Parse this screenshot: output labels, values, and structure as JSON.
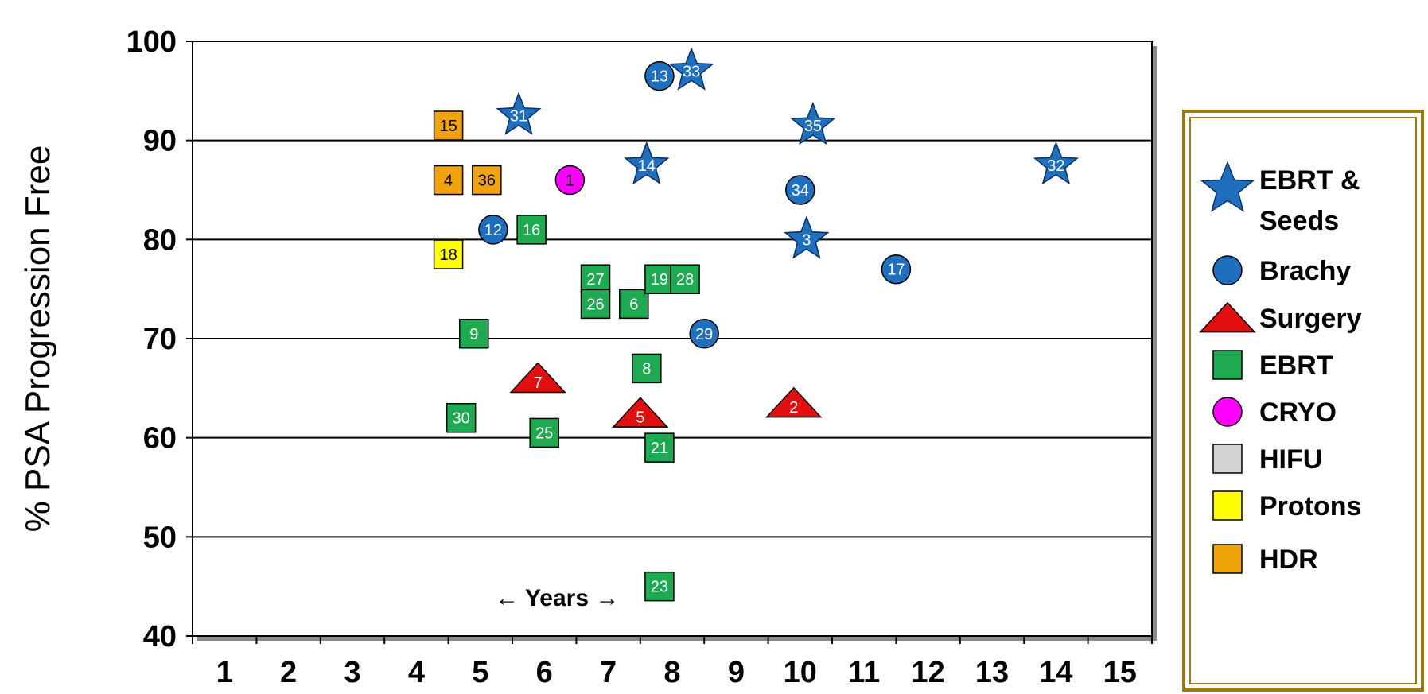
{
  "chart_data": {
    "type": "scatter",
    "ylabel": "% PSA Progression Free",
    "xlabel": "",
    "xlim": [
      0.5,
      15.5
    ],
    "ylim": [
      40,
      100
    ],
    "x_ticks": [
      1,
      2,
      3,
      4,
      5,
      6,
      7,
      8,
      9,
      10,
      11,
      12,
      13,
      14,
      15
    ],
    "y_ticks": [
      40,
      50,
      60,
      70,
      80,
      90,
      100
    ],
    "grid": "horizontal",
    "annotation": "← Years →",
    "annotation_position": [
      6.2,
      44
    ],
    "legend_placement": "right",
    "series": [
      {
        "name": "EBRT & Seeds",
        "marker": "star",
        "color": "#1F6FBF",
        "points": [
          {
            "id": "31",
            "x": 5.6,
            "y": 92.5
          },
          {
            "id": "33",
            "x": 8.3,
            "y": 97
          },
          {
            "id": "14",
            "x": 7.6,
            "y": 87.5
          },
          {
            "id": "35",
            "x": 10.2,
            "y": 91.5
          },
          {
            "id": "3",
            "x": 10.1,
            "y": 80
          },
          {
            "id": "32",
            "x": 14,
            "y": 87.5
          }
        ]
      },
      {
        "name": "Brachy",
        "marker": "circle",
        "color": "#1F6FBF",
        "points": [
          {
            "id": "13",
            "x": 7.8,
            "y": 96.5
          },
          {
            "id": "12",
            "x": 5.2,
            "y": 81
          },
          {
            "id": "34",
            "x": 10.0,
            "y": 85
          },
          {
            "id": "17",
            "x": 11.5,
            "y": 77
          },
          {
            "id": "29",
            "x": 8.5,
            "y": 70.5
          }
        ]
      },
      {
        "name": "Surgery",
        "marker": "triangle",
        "color": "#E01010",
        "points": [
          {
            "id": "7",
            "x": 5.9,
            "y": 66
          },
          {
            "id": "5",
            "x": 7.5,
            "y": 62.5
          },
          {
            "id": "2",
            "x": 9.9,
            "y": 63.5
          }
        ]
      },
      {
        "name": "EBRT",
        "marker": "square",
        "color": "#1DAA50",
        "points": [
          {
            "id": "16",
            "x": 5.8,
            "y": 81
          },
          {
            "id": "27",
            "x": 6.8,
            "y": 76
          },
          {
            "id": "26",
            "x": 6.8,
            "y": 73.5
          },
          {
            "id": "6",
            "x": 7.4,
            "y": 73.5
          },
          {
            "id": "19",
            "x": 7.8,
            "y": 76
          },
          {
            "id": "28",
            "x": 8.2,
            "y": 76
          },
          {
            "id": "9",
            "x": 4.9,
            "y": 70.5
          },
          {
            "id": "8",
            "x": 7.6,
            "y": 67
          },
          {
            "id": "30",
            "x": 4.7,
            "y": 62
          },
          {
            "id": "25",
            "x": 6.0,
            "y": 60.5
          },
          {
            "id": "21",
            "x": 7.8,
            "y": 59
          },
          {
            "id": "23",
            "x": 7.8,
            "y": 45
          }
        ]
      },
      {
        "name": "CRYO",
        "marker": "circle",
        "color": "#FF00FF",
        "points": [
          {
            "id": "1",
            "x": 6.4,
            "y": 86
          }
        ]
      },
      {
        "name": "HIFU",
        "marker": "square",
        "color": "#D4D4D4",
        "points": []
      },
      {
        "name": "Protons",
        "marker": "square",
        "color": "#FFFF00",
        "points": [
          {
            "id": "18",
            "x": 4.5,
            "y": 78.5
          }
        ]
      },
      {
        "name": "HDR",
        "marker": "square",
        "color": "#F0A30A",
        "points": [
          {
            "id": "15",
            "x": 4.5,
            "y": 91.5
          },
          {
            "id": "4",
            "x": 4.5,
            "y": 86
          },
          {
            "id": "36",
            "x": 5.1,
            "y": 86
          }
        ]
      }
    ],
    "legend": [
      {
        "label": "EBRT &\nSeeds",
        "marker": "star",
        "color": "#1F6FBF"
      },
      {
        "label": "Brachy",
        "marker": "circle",
        "color": "#1F6FBF"
      },
      {
        "label": "Surgery",
        "marker": "triangle",
        "color": "#E01010"
      },
      {
        "label": "EBRT",
        "marker": "square",
        "color": "#1DAA50"
      },
      {
        "label": "CRYO",
        "marker": "circle",
        "color": "#FF00FF"
      },
      {
        "label": "HIFU",
        "marker": "square",
        "color": "#D4D4D4"
      },
      {
        "label": "Protons",
        "marker": "square",
        "color": "#FFFF00"
      },
      {
        "label": "HDR",
        "marker": "square",
        "color": "#F0A30A"
      }
    ],
    "legend_border_color": "#9C7A10"
  }
}
